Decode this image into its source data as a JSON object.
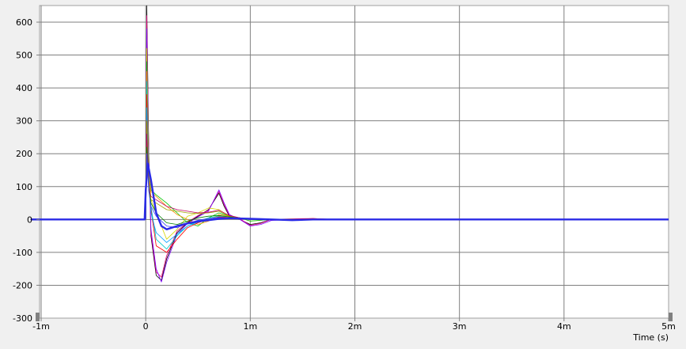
{
  "chart_data": {
    "type": "line",
    "xlabel": "Time  (s)",
    "ylabel": "",
    "xlim": [
      -0.0011,
      0.005
    ],
    "ylim": [
      -300,
      650
    ],
    "grid": true,
    "legend": "none",
    "x_ticks": [
      {
        "value": -0.001,
        "label": "-1m"
      },
      {
        "value": 0,
        "label": "0"
      },
      {
        "value": 0.001,
        "label": "1m"
      },
      {
        "value": 0.002,
        "label": "2m"
      },
      {
        "value": 0.003,
        "label": "3m"
      },
      {
        "value": 0.004,
        "label": "4m"
      },
      {
        "value": 0.005,
        "label": "5m"
      }
    ],
    "y_ticks": [
      {
        "value": 600,
        "label": "600"
      },
      {
        "value": 500,
        "label": "500"
      },
      {
        "value": 400,
        "label": "400"
      },
      {
        "value": 300,
        "label": "300"
      },
      {
        "value": 200,
        "label": "200"
      },
      {
        "value": 100,
        "label": "100"
      },
      {
        "value": 0,
        "label": "0"
      },
      {
        "value": -100,
        "label": "-100"
      },
      {
        "value": -200,
        "label": "-200"
      },
      {
        "value": -300,
        "label": "-300"
      }
    ],
    "series": [
      {
        "color": "#000000",
        "x": [
          -0.0011,
          0,
          1e-05,
          3e-05,
          5e-05,
          0.0001,
          0.00015,
          0.0002,
          0.0003,
          0.0004,
          0.0005,
          0.0006,
          0.0007,
          0.00075,
          0.0008,
          0.0009,
          0.001,
          0.0011,
          0.0012,
          0.0014,
          0.0016,
          0.0018,
          0.002,
          0.005
        ],
        "y": [
          0,
          0,
          650,
          200,
          -50,
          -170,
          -185,
          -120,
          -40,
          -10,
          10,
          30,
          80,
          40,
          10,
          0,
          -15,
          -10,
          0,
          0,
          0,
          0,
          0,
          0
        ]
      },
      {
        "color": "#e6007e",
        "x": [
          -0.0011,
          0,
          1e-05,
          3e-05,
          5e-05,
          0.0001,
          0.00015,
          0.0002,
          0.0003,
          0.0004,
          0.0005,
          0.0006,
          0.0007,
          0.00075,
          0.0008,
          0.0009,
          0.001,
          0.0011,
          0.0012,
          0.0014,
          0.0016,
          0.0018,
          0.002,
          0.005
        ],
        "y": [
          0,
          0,
          620,
          190,
          -40,
          -160,
          -175,
          -110,
          -35,
          -8,
          12,
          28,
          85,
          45,
          12,
          2,
          -18,
          -12,
          0,
          2,
          3,
          0,
          0,
          0
        ]
      },
      {
        "color": "#8000ff",
        "x": [
          -0.0011,
          0,
          1e-05,
          3e-05,
          5e-05,
          0.0001,
          0.00015,
          0.0002,
          0.0003,
          0.0004,
          0.0005,
          0.0006,
          0.0007,
          0.00075,
          0.0008,
          0.0009,
          0.001,
          0.0011,
          0.0012,
          0.0014,
          0.0016,
          0.0018,
          0.002,
          0.005
        ],
        "y": [
          0,
          0,
          580,
          180,
          -30,
          -150,
          -190,
          -130,
          -45,
          -12,
          8,
          25,
          90,
          50,
          15,
          0,
          -20,
          -15,
          -3,
          0,
          2,
          0,
          0,
          0
        ]
      },
      {
        "color": "#d4d400",
        "x": [
          -0.0011,
          0,
          1e-05,
          3e-05,
          5e-05,
          0.0001,
          0.00015,
          0.0002,
          0.0003,
          0.0004,
          0.0005,
          0.0006,
          0.0007,
          0.0008,
          0.0009,
          0.001,
          0.0012,
          0.0014,
          0.0016,
          0.0018,
          0.002,
          0.005
        ],
        "y": [
          0,
          0,
          520,
          160,
          60,
          20,
          -20,
          -60,
          -30,
          10,
          20,
          35,
          30,
          10,
          5,
          -5,
          0,
          0,
          0,
          0,
          0,
          0
        ]
      },
      {
        "color": "#00c800",
        "x": [
          -0.0011,
          0,
          1e-05,
          3e-05,
          5e-05,
          0.0001,
          0.0002,
          0.0003,
          0.0004,
          0.0005,
          0.0006,
          0.0007,
          0.0008,
          0.0009,
          0.001,
          0.0012,
          0.0014,
          0.0016,
          0.0018,
          0.002,
          0.005
        ],
        "y": [
          0,
          0,
          480,
          150,
          90,
          75,
          50,
          20,
          -10,
          -20,
          5,
          20,
          10,
          5,
          -5,
          0,
          0,
          0,
          0,
          0,
          0
        ]
      },
      {
        "color": "#ff8c00",
        "x": [
          -0.0011,
          0,
          1e-05,
          3e-05,
          5e-05,
          0.0001,
          0.0002,
          0.0003,
          0.0004,
          0.0005,
          0.0006,
          0.0007,
          0.0008,
          0.0009,
          0.001,
          0.0012,
          0.0014,
          0.0016,
          0.0018,
          0.002,
          0.005
        ],
        "y": [
          0,
          0,
          450,
          140,
          85,
          70,
          40,
          15,
          0,
          -15,
          -5,
          15,
          10,
          5,
          0,
          0,
          0,
          2,
          0,
          0,
          0
        ]
      },
      {
        "color": "#00c8c8",
        "x": [
          -0.0011,
          0,
          1e-05,
          3e-05,
          5e-05,
          0.0001,
          0.0002,
          0.0003,
          0.0004,
          0.0005,
          0.0006,
          0.0007,
          0.0008,
          0.0009,
          0.001,
          0.0012,
          0.0014,
          0.0016,
          0.0018,
          0.002,
          0.005
        ],
        "y": [
          0,
          0,
          420,
          130,
          40,
          -60,
          -90,
          -50,
          -20,
          -5,
          5,
          10,
          8,
          5,
          0,
          0,
          0,
          0,
          0,
          0,
          0
        ]
      },
      {
        "color": "#ff0000",
        "x": [
          -0.0011,
          0,
          1e-05,
          3e-05,
          5e-05,
          0.0001,
          0.0002,
          0.0003,
          0.0004,
          0.0005,
          0.0006,
          0.0007,
          0.0008,
          0.0009,
          0.001,
          0.0012,
          0.0014,
          0.0016,
          0.0018,
          0.002,
          0.005
        ],
        "y": [
          0,
          0,
          380,
          120,
          30,
          -80,
          -100,
          -60,
          -25,
          -10,
          0,
          8,
          6,
          3,
          0,
          0,
          0,
          3,
          0,
          0,
          0
        ]
      },
      {
        "color": "#00a0ff",
        "x": [
          -0.0011,
          0,
          1e-05,
          3e-05,
          5e-05,
          0.0001,
          0.0002,
          0.0003,
          0.0004,
          0.0005,
          0.0006,
          0.0007,
          0.0008,
          0.0009,
          0.001,
          0.0012,
          0.0014,
          0.0016,
          0.0018,
          0.002,
          0.005
        ],
        "y": [
          0,
          0,
          340,
          110,
          20,
          -40,
          -70,
          -45,
          -20,
          -8,
          0,
          5,
          5,
          2,
          0,
          0,
          0,
          0,
          0,
          0,
          0
        ]
      },
      {
        "color": "#a0a000",
        "x": [
          -0.0011,
          0,
          1e-05,
          3e-05,
          5e-05,
          0.0001,
          0.0002,
          0.0003,
          0.0004,
          0.0005,
          0.0006,
          0.0007,
          0.0008,
          0.0009,
          0.001,
          0.0012,
          0.0014,
          0.0016,
          0.0018,
          0.002,
          0.005
        ],
        "y": [
          0,
          0,
          300,
          100,
          60,
          50,
          30,
          25,
          20,
          18,
          20,
          25,
          10,
          5,
          0,
          0,
          0,
          0,
          0,
          0,
          0
        ]
      },
      {
        "color": "#c00060",
        "x": [
          -0.0011,
          0,
          1e-05,
          3e-05,
          5e-05,
          0.0001,
          0.0002,
          0.0003,
          0.0004,
          0.0005,
          0.0006,
          0.0007,
          0.0008,
          0.0009,
          0.001,
          0.0012,
          0.0014,
          0.0016,
          0.0018,
          0.002,
          0.005
        ],
        "y": [
          0,
          0,
          260,
          95,
          70,
          60,
          40,
          30,
          25,
          20,
          22,
          28,
          12,
          5,
          0,
          0,
          0,
          0,
          0,
          0,
          0
        ]
      },
      {
        "color": "#008000",
        "x": [
          -0.0011,
          0,
          1e-05,
          3e-05,
          5e-05,
          0.0001,
          0.0002,
          0.0003,
          0.0004,
          0.0005,
          0.0006,
          0.0007,
          0.0008,
          0.0009,
          0.001,
          0.0012,
          0.0014,
          0.0016,
          0.0018,
          0.002,
          0.005
        ],
        "y": [
          0,
          0,
          220,
          90,
          50,
          20,
          -10,
          -15,
          -5,
          5,
          10,
          12,
          8,
          4,
          0,
          0,
          0,
          0,
          0,
          0,
          0
        ]
      },
      {
        "color": "#4040ff",
        "x": [
          -0.0011,
          0,
          1e-05,
          3e-05,
          5e-05,
          0.0001,
          0.0002,
          0.0003,
          0.0004,
          0.0005,
          0.0006,
          0.0007,
          0.0008,
          0.0009,
          0.001,
          0.0012,
          0.0014,
          0.0016,
          0.0018,
          0.002,
          0.005
        ],
        "y": [
          0,
          0,
          200,
          85,
          40,
          10,
          -20,
          -25,
          -12,
          -2,
          3,
          6,
          5,
          3,
          0,
          0,
          0,
          0,
          0,
          0,
          0
        ]
      },
      {
        "color": "#2a2ae6",
        "x": [
          -0.0011,
          -1e-05,
          0,
          2e-05,
          5e-05,
          0.0001,
          0.00015,
          0.0002,
          0.0003,
          0.0004,
          0.0005,
          0.0006,
          0.0007,
          0.0008,
          0.0009,
          0.001,
          0.0012,
          0.0014,
          0.0016,
          0.0018,
          0.002,
          0.005
        ],
        "y": [
          0,
          0,
          90,
          170,
          120,
          20,
          -20,
          -30,
          -20,
          -12,
          -6,
          -2,
          2,
          4,
          3,
          2,
          0,
          -2,
          0,
          0,
          0,
          0
        ]
      }
    ]
  }
}
